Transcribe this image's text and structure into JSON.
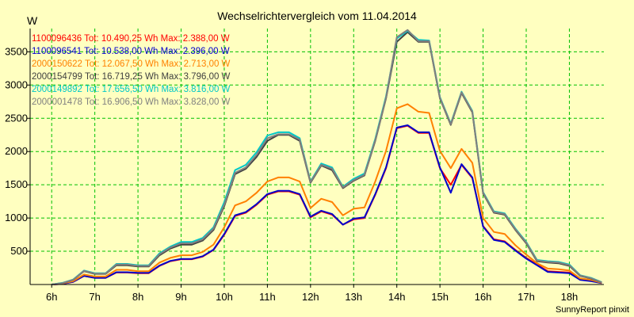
{
  "chart_data": {
    "type": "line",
    "title": "Wechselrichtervergleich vom 11.04.2014",
    "ylabel": "W",
    "xlabel": "",
    "credit": "SunnyReport pinxit",
    "ylim": [
      0,
      3850
    ],
    "xlim": [
      5.5,
      18.8
    ],
    "grid": true,
    "legend_position": "top-left",
    "y_ticks": [
      500,
      1000,
      1500,
      2000,
      2500,
      3000,
      3500
    ],
    "y_tick_labels": [
      "500",
      "1000",
      "1500",
      "2000",
      "2500",
      "3000",
      "3500"
    ],
    "x_ticks": [
      6,
      7,
      8,
      9,
      10,
      11,
      12,
      13,
      14,
      15,
      16,
      17,
      18
    ],
    "x_tick_labels": [
      "6h",
      "7h",
      "8h",
      "9h",
      "10h",
      "11h",
      "12h",
      "13h",
      "14h",
      "15h",
      "16h",
      "17h",
      "18h"
    ],
    "x": [
      6.0,
      6.25,
      6.5,
      6.75,
      7.0,
      7.25,
      7.5,
      7.75,
      8.0,
      8.25,
      8.5,
      8.75,
      9.0,
      9.25,
      9.5,
      9.75,
      10.0,
      10.25,
      10.5,
      10.75,
      11.0,
      11.25,
      11.5,
      11.75,
      12.0,
      12.25,
      12.5,
      12.75,
      13.0,
      13.25,
      13.5,
      13.75,
      14.0,
      14.25,
      14.5,
      14.75,
      15.0,
      15.25,
      15.5,
      15.75,
      16.0,
      16.25,
      16.5,
      16.75,
      17.0,
      17.25,
      17.5,
      17.75,
      18.0,
      18.25,
      18.5,
      18.75
    ],
    "series": [
      {
        "name": "1100096436",
        "legend": "1100096436 Tot: 10.490,25 Wh Max: 2.388,00 W",
        "color": "#ff0000",
        "values": [
          0,
          10,
          40,
          130,
          100,
          100,
          180,
          180,
          170,
          170,
          280,
          350,
          380,
          380,
          420,
          520,
          750,
          1030,
          1080,
          1200,
          1350,
          1400,
          1400,
          1350,
          1010,
          1100,
          1050,
          900,
          980,
          1000,
          1350,
          1750,
          2350,
          2388,
          2280,
          2280,
          1750,
          1500,
          1800,
          1600,
          880,
          680,
          650,
          520,
          400,
          300,
          200,
          190,
          180,
          80,
          60,
          20
        ]
      },
      {
        "name": "1100096541",
        "legend": "1100096541 Tot: 10.538,00 Wh Max: 2.396,00 W",
        "color": "#0000cc",
        "values": [
          0,
          10,
          40,
          130,
          100,
          100,
          185,
          185,
          175,
          175,
          285,
          355,
          385,
          385,
          425,
          525,
          760,
          1040,
          1090,
          1210,
          1360,
          1410,
          1410,
          1360,
          1020,
          1110,
          1060,
          900,
          990,
          1010,
          1360,
          1760,
          2360,
          2396,
          2290,
          2290,
          1760,
          1380,
          1810,
          1610,
          870,
          670,
          640,
          510,
          390,
          290,
          190,
          180,
          170,
          70,
          50,
          20
        ]
      },
      {
        "name": "2000150622",
        "legend": "2000150622 Tot: 12.067,50 Wh Max: 2.713,00 W",
        "color": "#ff8000",
        "values": [
          0,
          15,
          50,
          150,
          120,
          120,
          220,
          220,
          200,
          200,
          330,
          400,
          440,
          440,
          490,
          600,
          860,
          1190,
          1250,
          1380,
          1550,
          1610,
          1610,
          1550,
          1150,
          1290,
          1240,
          1040,
          1140,
          1160,
          1550,
          2010,
          2650,
          2713,
          2600,
          2580,
          2010,
          1750,
          2040,
          1830,
          1000,
          790,
          760,
          590,
          450,
          320,
          240,
          230,
          210,
          90,
          70,
          25
        ]
      },
      {
        "name": "2000154799",
        "legend": "2000154799 Tot: 16.719,25 Wh Max: 3.796,00 W",
        "color": "#404040",
        "values": [
          0,
          20,
          70,
          200,
          160,
          160,
          290,
          290,
          270,
          270,
          440,
          540,
          600,
          600,
          660,
          820,
          1180,
          1660,
          1740,
          1920,
          2160,
          2250,
          2250,
          2160,
          1530,
          1790,
          1720,
          1450,
          1560,
          1640,
          2160,
          2800,
          3650,
          3796,
          3650,
          3650,
          2800,
          2400,
          2880,
          2590,
          1370,
          1080,
          1050,
          820,
          620,
          350,
          330,
          320,
          280,
          130,
          90,
          30
        ]
      },
      {
        "name": "2000149892",
        "legend": "2000149892 Tot: 17.656,50 Wh Max: 3.816,00 W",
        "color": "#00c8c8",
        "values": [
          0,
          25,
          75,
          210,
          170,
          170,
          310,
          310,
          290,
          290,
          470,
          570,
          640,
          640,
          700,
          860,
          1240,
          1720,
          1800,
          1990,
          2240,
          2290,
          2290,
          2200,
          1550,
          1820,
          1760,
          1470,
          1590,
          1670,
          2190,
          2830,
          3700,
          3816,
          3680,
          3670,
          2820,
          2420,
          2900,
          2610,
          1390,
          1100,
          1070,
          840,
          640,
          370,
          350,
          340,
          300,
          140,
          100,
          35
        ]
      },
      {
        "name": "2000001478",
        "legend": "2000001478 Tot: 16.906,50 Wh Max: 3.828,00 W",
        "color": "#808080",
        "values": [
          0,
          22,
          72,
          205,
          165,
          165,
          300,
          300,
          280,
          280,
          455,
          555,
          620,
          620,
          680,
          840,
          1200,
          1680,
          1760,
          1950,
          2200,
          2260,
          2260,
          2180,
          1540,
          1800,
          1740,
          1460,
          1570,
          1650,
          2170,
          2810,
          3720,
          3828,
          3660,
          3660,
          2810,
          2410,
          2890,
          2600,
          1380,
          1090,
          1060,
          830,
          630,
          360,
          340,
          330,
          290,
          135,
          95,
          32
        ]
      }
    ]
  }
}
